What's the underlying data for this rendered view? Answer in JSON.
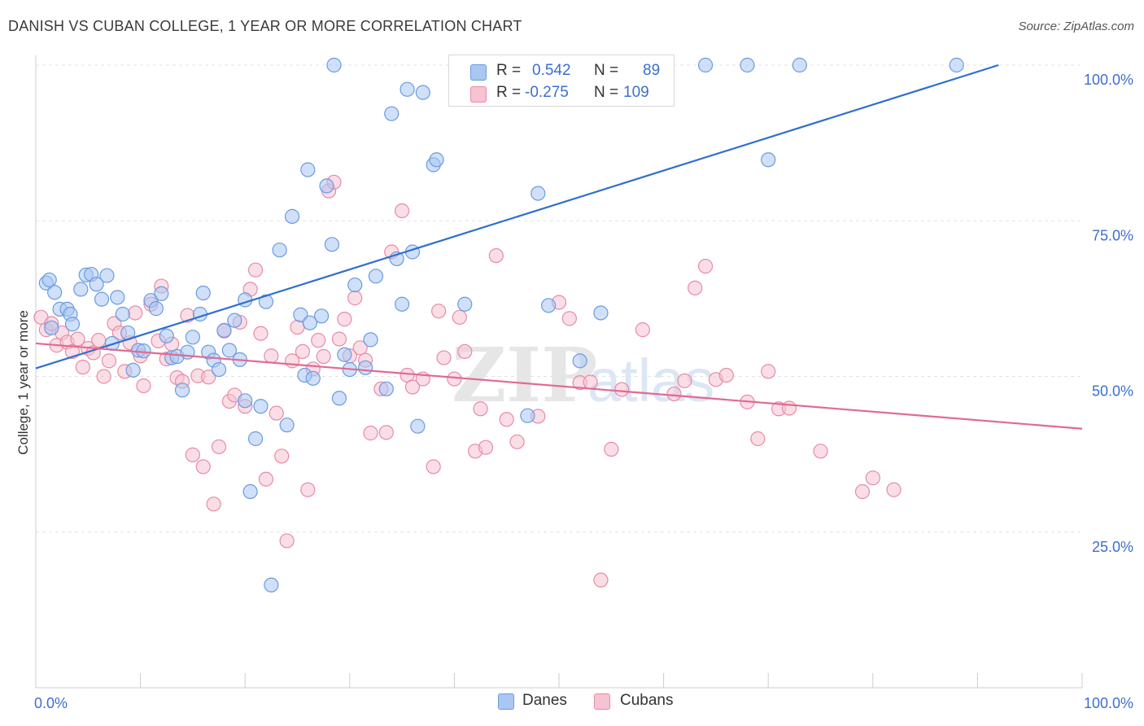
{
  "title": "DANISH VS CUBAN COLLEGE, 1 YEAR OR MORE CORRELATION CHART",
  "source": "Source: ZipAtlas.com",
  "watermark": {
    "zip": "ZIP",
    "atlas": "atlas"
  },
  "legend": {
    "r_label": "R =",
    "n_label": "N =",
    "rows": [
      {
        "r": "0.542",
        "n": "89",
        "color": "#a9c7f2",
        "stroke": "#6a9be0"
      },
      {
        "r": "-0.275",
        "n": "109",
        "color": "#f6c3d2",
        "stroke": "#e88aa8"
      }
    ]
  },
  "bottom_legend": [
    "Danes",
    "Cubans"
  ],
  "chart_data": {
    "type": "scatter",
    "title": "DANISH VS CUBAN COLLEGE, 1 YEAR OR MORE CORRELATION CHART",
    "xlabel": "",
    "ylabel": "College, 1 year or more",
    "xlim": [
      0,
      100
    ],
    "ylim": [
      0,
      100
    ],
    "x_tick_labels": [
      "0.0%",
      "100.0%"
    ],
    "y_tick_labels": [
      "25.0%",
      "50.0%",
      "75.0%",
      "100.0%"
    ],
    "y_ticks": [
      25,
      50,
      75,
      100
    ],
    "grid": true,
    "legend_position": "top-center",
    "series": [
      {
        "name": "Danes",
        "color": "#6a9be0",
        "fill": "#a9c7f2",
        "line_color": "#2f6fcd",
        "trend": [
          [
            0,
            51.3
          ],
          [
            92,
            100
          ]
        ],
        "points": [
          [
            1,
            65
          ],
          [
            1.3,
            65.5
          ],
          [
            1.8,
            63.5
          ],
          [
            1.5,
            57.8
          ],
          [
            2.3,
            60.8
          ],
          [
            3,
            60.8
          ],
          [
            3.3,
            60
          ],
          [
            3.5,
            58.4
          ],
          [
            4.3,
            64
          ],
          [
            4.8,
            66.3
          ],
          [
            5.3,
            66.4
          ],
          [
            5.8,
            64.8
          ],
          [
            6.3,
            62.4
          ],
          [
            6.8,
            66.2
          ],
          [
            7.3,
            55.3
          ],
          [
            7.8,
            62.7
          ],
          [
            8.3,
            60
          ],
          [
            8.8,
            57
          ],
          [
            9.3,
            51
          ],
          [
            9.8,
            54.2
          ],
          [
            10.3,
            54.1
          ],
          [
            11,
            62.2
          ],
          [
            11.5,
            60.9
          ],
          [
            12,
            63.3
          ],
          [
            12.5,
            56.5
          ],
          [
            13,
            53
          ],
          [
            13.5,
            53.2
          ],
          [
            14,
            47.8
          ],
          [
            14.5,
            53.9
          ],
          [
            15,
            56.3
          ],
          [
            15.7,
            60
          ],
          [
            16,
            63.4
          ],
          [
            16.5,
            53.9
          ],
          [
            17,
            52.6
          ],
          [
            17.5,
            51.1
          ],
          [
            18,
            57.4
          ],
          [
            18.5,
            54.2
          ],
          [
            19,
            59
          ],
          [
            19.5,
            52.7
          ],
          [
            20,
            46.1
          ],
          [
            20.5,
            31.5
          ],
          [
            21,
            40
          ],
          [
            21.5,
            45.2
          ],
          [
            22,
            62
          ],
          [
            22.5,
            16.5
          ],
          [
            23.3,
            70.3
          ],
          [
            24,
            42.2
          ],
          [
            24.5,
            75.7
          ],
          [
            25.3,
            59.9
          ],
          [
            25.7,
            50.2
          ],
          [
            26,
            83.2
          ],
          [
            26.5,
            49.7
          ],
          [
            27.3,
            59.7
          ],
          [
            27.8,
            80.6
          ],
          [
            28.3,
            71.2
          ],
          [
            28.5,
            100
          ],
          [
            29,
            46.5
          ],
          [
            29.5,
            53.5
          ],
          [
            30,
            51.1
          ],
          [
            30.5,
            64.7
          ],
          [
            31.5,
            51.4
          ],
          [
            32,
            55.9
          ],
          [
            32.5,
            66.1
          ],
          [
            34,
            92.2
          ],
          [
            34.5,
            68.9
          ],
          [
            35,
            61.6
          ],
          [
            35.5,
            96.1
          ],
          [
            36,
            70
          ],
          [
            36.5,
            42
          ],
          [
            37,
            95.6
          ],
          [
            38,
            84
          ],
          [
            38.3,
            84.8
          ],
          [
            41,
            61.6
          ],
          [
            45,
            100
          ],
          [
            47,
            43.7
          ],
          [
            49,
            61.4
          ],
          [
            52,
            52.5
          ],
          [
            54,
            60.2
          ],
          [
            59,
            100
          ],
          [
            64,
            100
          ],
          [
            68,
            100
          ],
          [
            70,
            84.8
          ],
          [
            73,
            100
          ],
          [
            88,
            100
          ],
          [
            48,
            79.4
          ],
          [
            20,
            62.3
          ],
          [
            33.5,
            48
          ],
          [
            26.2,
            58.6
          ]
        ]
      },
      {
        "name": "Cubans",
        "color": "#e88aa8",
        "fill": "#f6c3d2",
        "line_color": "#e06a93",
        "trend": [
          [
            0,
            55.3
          ],
          [
            100,
            41.6
          ]
        ],
        "points": [
          [
            0.5,
            59.5
          ],
          [
            1,
            57.5
          ],
          [
            1.5,
            58.5
          ],
          [
            2,
            55
          ],
          [
            2.5,
            57
          ],
          [
            3,
            55.5
          ],
          [
            3.5,
            54
          ],
          [
            4,
            56
          ],
          [
            4.5,
            51.5
          ],
          [
            5,
            54.5
          ],
          [
            5.5,
            53.8
          ],
          [
            6,
            55.8
          ],
          [
            6.5,
            50
          ],
          [
            7,
            52.5
          ],
          [
            7.5,
            58.5
          ],
          [
            8,
            57
          ],
          [
            8.5,
            50.8
          ],
          [
            9,
            55.4
          ],
          [
            9.5,
            60.2
          ],
          [
            10,
            53.3
          ],
          [
            10.3,
            48.5
          ],
          [
            11,
            61.6
          ],
          [
            11.7,
            55.7
          ],
          [
            12,
            64.5
          ],
          [
            12.5,
            52.8
          ],
          [
            13,
            55.2
          ],
          [
            13.5,
            49.8
          ],
          [
            14,
            49.2
          ],
          [
            14.5,
            59.8
          ],
          [
            15,
            37.4
          ],
          [
            15.5,
            50.1
          ],
          [
            16,
            35.5
          ],
          [
            16.5,
            49.9
          ],
          [
            17,
            29.5
          ],
          [
            17.5,
            38.7
          ],
          [
            18,
            57.3
          ],
          [
            18.5,
            46
          ],
          [
            19,
            47
          ],
          [
            19.5,
            58.7
          ],
          [
            20,
            45.2
          ],
          [
            20.5,
            64
          ],
          [
            21,
            67.1
          ],
          [
            21.5,
            56.9
          ],
          [
            22,
            33.5
          ],
          [
            22.5,
            53.3
          ],
          [
            23,
            44.1
          ],
          [
            23.5,
            37.2
          ],
          [
            24,
            23.6
          ],
          [
            24.5,
            52.5
          ],
          [
            25,
            57.9
          ],
          [
            25.5,
            54
          ],
          [
            26,
            31.8
          ],
          [
            26.5,
            51.2
          ],
          [
            27,
            55.8
          ],
          [
            27.5,
            53.2
          ],
          [
            28,
            79.8
          ],
          [
            28.5,
            81.2
          ],
          [
            29,
            56
          ],
          [
            29.5,
            59.2
          ],
          [
            30,
            53.3
          ],
          [
            30.5,
            62.6
          ],
          [
            31,
            54.6
          ],
          [
            31.5,
            52.6
          ],
          [
            32,
            40.9
          ],
          [
            33,
            48
          ],
          [
            33.5,
            41
          ],
          [
            34,
            70
          ],
          [
            35,
            76.6
          ],
          [
            35.5,
            50.2
          ],
          [
            36,
            48.3
          ],
          [
            37,
            49.6
          ],
          [
            38,
            35.5
          ],
          [
            38.5,
            60.5
          ],
          [
            39,
            53
          ],
          [
            40,
            49.6
          ],
          [
            40.5,
            59.5
          ],
          [
            41,
            54
          ],
          [
            42,
            38
          ],
          [
            42.5,
            44.8
          ],
          [
            43,
            38.6
          ],
          [
            44,
            69.4
          ],
          [
            45,
            43.1
          ],
          [
            46,
            39.5
          ],
          [
            48,
            43.6
          ],
          [
            50,
            61.9
          ],
          [
            51,
            59.3
          ],
          [
            52,
            49
          ],
          [
            53,
            49.1
          ],
          [
            55,
            38.3
          ],
          [
            56,
            47.9
          ],
          [
            58,
            57.5
          ],
          [
            61,
            47.2
          ],
          [
            62,
            49.3
          ],
          [
            63,
            64.2
          ],
          [
            64,
            67.7
          ],
          [
            65,
            49.5
          ],
          [
            66,
            50.2
          ],
          [
            68,
            45.9
          ],
          [
            69,
            40
          ],
          [
            70,
            50.8
          ],
          [
            71,
            44.8
          ],
          [
            72,
            44.9
          ],
          [
            75,
            38
          ],
          [
            79,
            31.5
          ],
          [
            80,
            33.7
          ],
          [
            82,
            31.8
          ],
          [
            54,
            17.3
          ]
        ]
      }
    ]
  }
}
